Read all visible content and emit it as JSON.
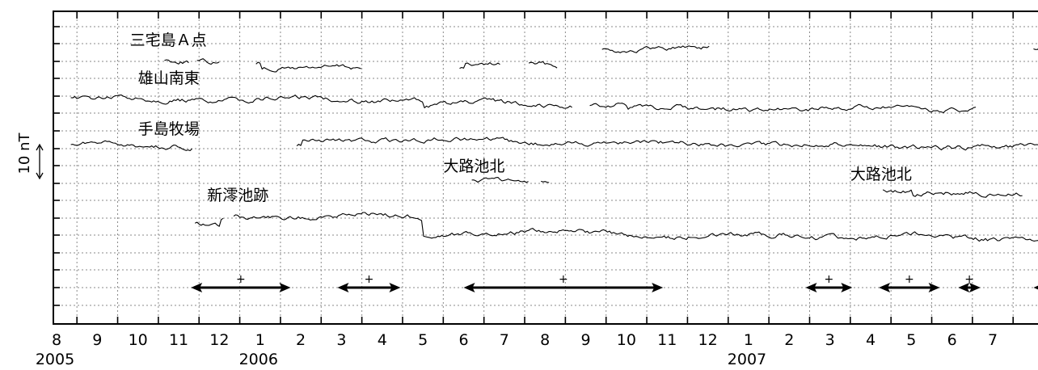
{
  "chart_data": {
    "type": "line",
    "x_months": [
      "8",
      "9",
      "10",
      "11",
      "12",
      "1",
      "2",
      "3",
      "4",
      "5",
      "6",
      "7",
      "8",
      "9",
      "10",
      "11",
      "12",
      "1",
      "2",
      "3",
      "4",
      "5",
      "6",
      "7"
    ],
    "year_labels": [
      {
        "text": "2005",
        "month_index": 0
      },
      {
        "text": "2006",
        "month_index": 5
      },
      {
        "text": "2007",
        "month_index": 17
      }
    ],
    "ylabel": "10 nT",
    "grid": true,
    "series": [
      {
        "name": "三宅島Ａ点",
        "label_month": 1.8,
        "segments": [
          [
            2.65,
            3.25
          ],
          [
            3.45,
            4.02
          ],
          [
            4.9,
            7.5
          ],
          [
            9.9,
            10.9
          ],
          [
            11.6,
            12.3
          ],
          [
            13.4,
            16.05
          ],
          [
            24.0,
            26.05
          ]
        ]
      },
      {
        "name": "雄山南東",
        "label_month": 2.0,
        "segments": [
          [
            0.35,
            12.7
          ],
          [
            13.1,
            22.6
          ]
        ]
      },
      {
        "name": "手島牧場",
        "label_month": 2.0,
        "segments": [
          [
            0.35,
            3.35
          ],
          [
            5.9,
            26.05
          ]
        ]
      },
      {
        "name": "大路池北",
        "label_month": 9.5,
        "segments": [
          [
            10.2,
            11.6
          ],
          [
            11.9,
            12.1
          ]
        ]
      },
      {
        "name": "大路池北",
        "label_month": 19.5,
        "segments": [
          [
            20.3,
            23.75
          ]
        ]
      },
      {
        "name": "新澪池跡",
        "label_month": 3.7,
        "segments": [
          [
            3.4,
            4.1
          ],
          [
            4.35,
            26.05
          ]
        ]
      }
    ],
    "markers": [
      {
        "label": "+",
        "from": 3.3,
        "to": 5.75,
        "arrow_left": true,
        "arrow_right": true
      },
      {
        "label": "+",
        "from": 6.9,
        "to": 8.45,
        "arrow_left": true,
        "arrow_right": true
      },
      {
        "label": "+",
        "from": 10.0,
        "to": 14.9,
        "arrow_left": true,
        "arrow_right": true
      },
      {
        "label": "+",
        "from": 18.4,
        "to": 19.55,
        "arrow_left": true,
        "arrow_right": true
      },
      {
        "label": "+",
        "from": 20.2,
        "to": 21.7,
        "arrow_left": true,
        "arrow_right": true
      },
      {
        "label": "+",
        "from": 22.15,
        "to": 22.7,
        "arrow_left": true,
        "arrow_right": true
      },
      {
        "label": "+",
        "from": 24.0,
        "to": 26.05,
        "arrow_left": true,
        "arrow_right": false
      }
    ]
  }
}
